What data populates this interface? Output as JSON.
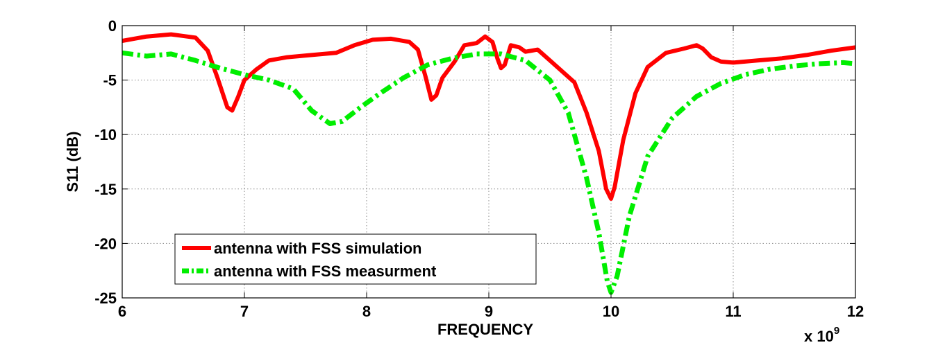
{
  "chart_data": {
    "type": "line",
    "title": "",
    "xlabel": "FREQUENCY",
    "ylabel": "S11 (dB)",
    "x_multiplier_label": "x 10",
    "x_multiplier_exponent": "9",
    "x_scale": 1000000000,
    "xlim": [
      6,
      12
    ],
    "ylim": [
      -25,
      0
    ],
    "x_ticks": [
      6,
      7,
      8,
      9,
      10,
      11,
      12
    ],
    "y_ticks": [
      0,
      -5,
      -10,
      -15,
      -20,
      -25
    ],
    "grid": true,
    "legend_position": "bottom-left",
    "series": [
      {
        "name": "antenna with FSS simulation",
        "color": "#ff0000",
        "line_style": "solid",
        "points": [
          [
            6.0,
            -1.4
          ],
          [
            6.2,
            -1.0
          ],
          [
            6.4,
            -0.8
          ],
          [
            6.6,
            -1.1
          ],
          [
            6.7,
            -2.3
          ],
          [
            6.78,
            -4.8
          ],
          [
            6.86,
            -7.5
          ],
          [
            6.9,
            -7.8
          ],
          [
            6.95,
            -6.5
          ],
          [
            7.0,
            -5.0
          ],
          [
            7.1,
            -4.0
          ],
          [
            7.2,
            -3.2
          ],
          [
            7.35,
            -2.9
          ],
          [
            7.55,
            -2.7
          ],
          [
            7.75,
            -2.5
          ],
          [
            7.9,
            -1.8
          ],
          [
            8.05,
            -1.3
          ],
          [
            8.2,
            -1.2
          ],
          [
            8.35,
            -1.5
          ],
          [
            8.42,
            -2.2
          ],
          [
            8.48,
            -4.6
          ],
          [
            8.53,
            -6.8
          ],
          [
            8.57,
            -6.4
          ],
          [
            8.62,
            -4.8
          ],
          [
            8.72,
            -3.3
          ],
          [
            8.8,
            -1.8
          ],
          [
            8.9,
            -1.6
          ],
          [
            8.97,
            -1.0
          ],
          [
            9.03,
            -1.5
          ],
          [
            9.07,
            -3.0
          ],
          [
            9.1,
            -3.9
          ],
          [
            9.13,
            -3.6
          ],
          [
            9.18,
            -1.8
          ],
          [
            9.25,
            -2.0
          ],
          [
            9.3,
            -2.4
          ],
          [
            9.4,
            -2.2
          ],
          [
            9.5,
            -3.2
          ],
          [
            9.6,
            -4.2
          ],
          [
            9.7,
            -5.2
          ],
          [
            9.8,
            -8.0
          ],
          [
            9.9,
            -11.5
          ],
          [
            9.96,
            -15.0
          ],
          [
            10.0,
            -15.9
          ],
          [
            10.03,
            -14.8
          ],
          [
            10.1,
            -10.5
          ],
          [
            10.2,
            -6.2
          ],
          [
            10.3,
            -3.8
          ],
          [
            10.45,
            -2.5
          ],
          [
            10.6,
            -2.1
          ],
          [
            10.7,
            -1.8
          ],
          [
            10.75,
            -2.1
          ],
          [
            10.82,
            -2.9
          ],
          [
            10.9,
            -3.3
          ],
          [
            11.0,
            -3.4
          ],
          [
            11.2,
            -3.2
          ],
          [
            11.4,
            -3.0
          ],
          [
            11.6,
            -2.7
          ],
          [
            11.8,
            -2.3
          ],
          [
            12.0,
            -2.0
          ]
        ]
      },
      {
        "name": "antenna with FSS measurment",
        "color": "#00ee00",
        "line_style": "dash-dot",
        "points": [
          [
            6.0,
            -2.5
          ],
          [
            6.2,
            -2.8
          ],
          [
            6.4,
            -2.6
          ],
          [
            6.6,
            -3.2
          ],
          [
            6.8,
            -3.9
          ],
          [
            7.0,
            -4.5
          ],
          [
            7.2,
            -5.0
          ],
          [
            7.4,
            -5.8
          ],
          [
            7.55,
            -7.8
          ],
          [
            7.7,
            -9.0
          ],
          [
            7.8,
            -8.8
          ],
          [
            7.95,
            -7.5
          ],
          [
            8.1,
            -6.3
          ],
          [
            8.3,
            -4.8
          ],
          [
            8.5,
            -3.6
          ],
          [
            8.7,
            -3.0
          ],
          [
            8.9,
            -2.6
          ],
          [
            9.1,
            -2.6
          ],
          [
            9.3,
            -3.2
          ],
          [
            9.5,
            -5.0
          ],
          [
            9.65,
            -8.0
          ],
          [
            9.8,
            -14.0
          ],
          [
            9.9,
            -19.0
          ],
          [
            9.97,
            -23.5
          ],
          [
            10.0,
            -24.5
          ],
          [
            10.05,
            -23.0
          ],
          [
            10.15,
            -17.5
          ],
          [
            10.3,
            -12.0
          ],
          [
            10.5,
            -8.5
          ],
          [
            10.7,
            -6.5
          ],
          [
            10.9,
            -5.3
          ],
          [
            11.1,
            -4.5
          ],
          [
            11.3,
            -4.0
          ],
          [
            11.5,
            -3.7
          ],
          [
            11.7,
            -3.5
          ],
          [
            11.9,
            -3.4
          ],
          [
            12.0,
            -3.5
          ]
        ]
      }
    ]
  }
}
